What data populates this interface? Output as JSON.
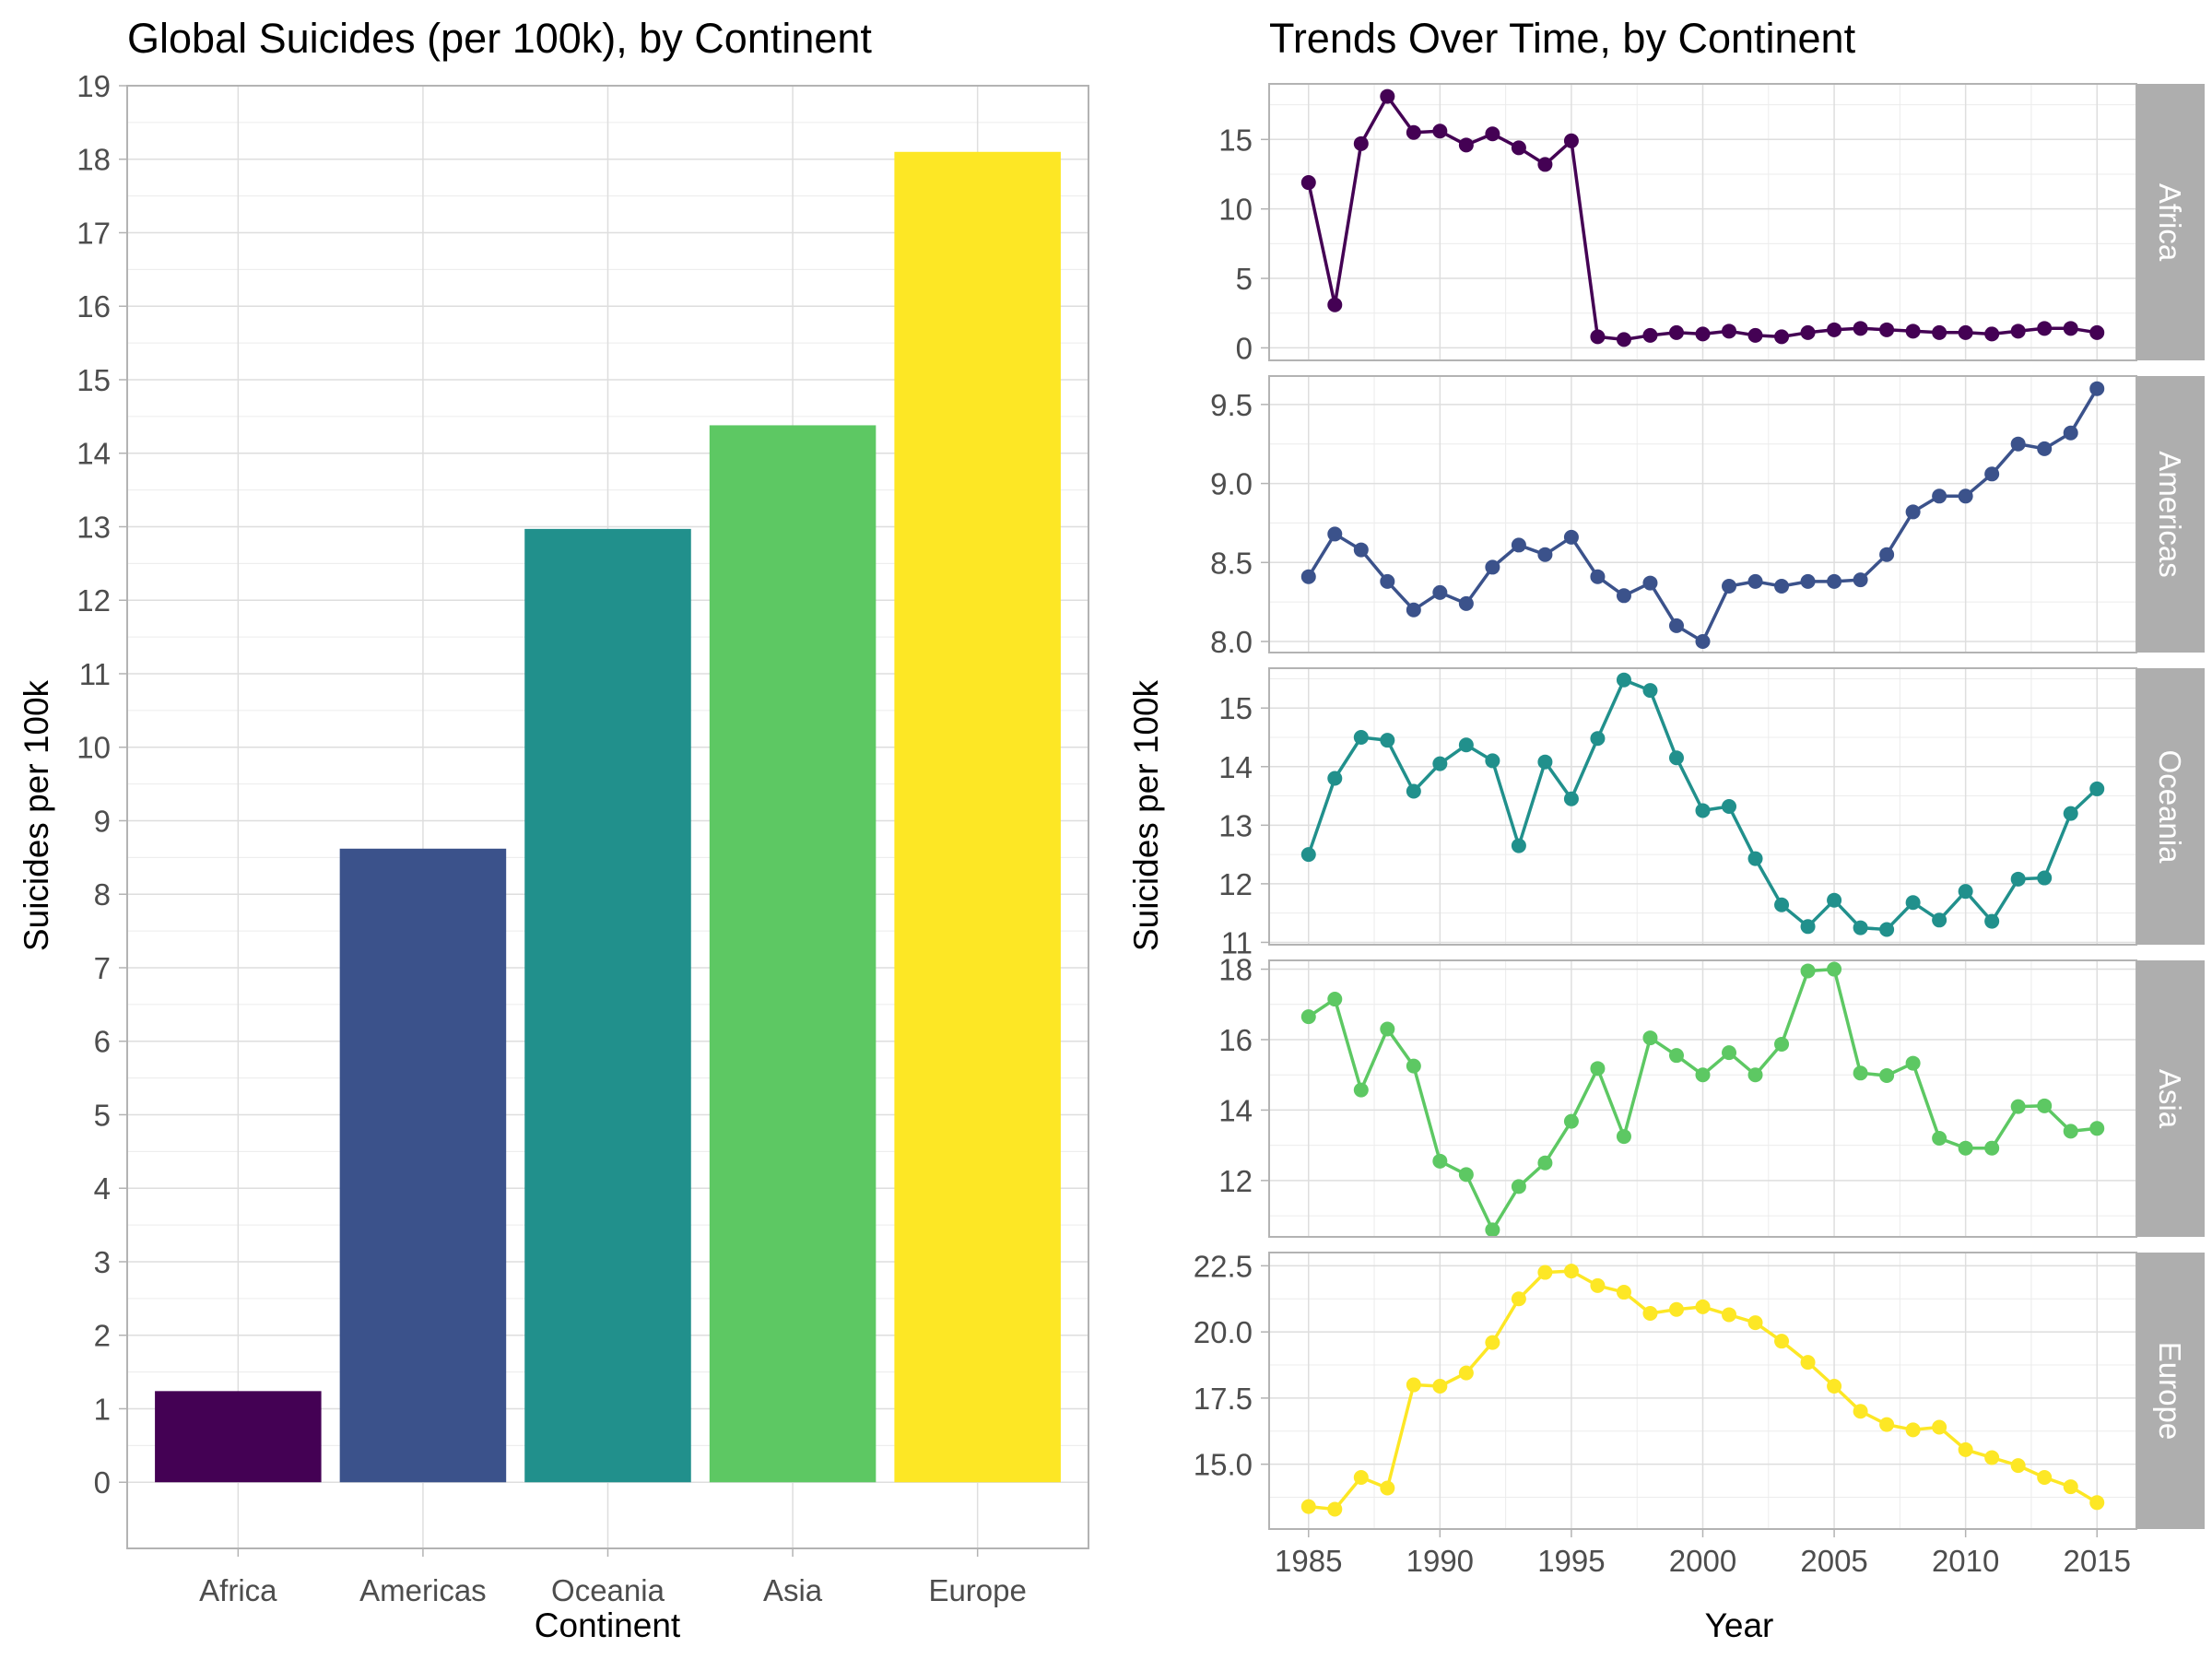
{
  "chart_data": [
    {
      "type": "bar",
      "title": "Global Suicides (per 100k), by Continent",
      "xlabel": "Continent",
      "ylabel": "Suicides per 100k",
      "categories": [
        "Africa",
        "Americas",
        "Oceania",
        "Asia",
        "Europe"
      ],
      "values": [
        1.24,
        8.62,
        12.97,
        14.38,
        18.1
      ],
      "colors": [
        "#440154",
        "#3B528B",
        "#21908C",
        "#5DC863",
        "#FDE725"
      ],
      "ylim": [
        -0.9,
        19
      ],
      "yticks": [
        0,
        1,
        2,
        3,
        4,
        5,
        6,
        7,
        8,
        9,
        10,
        11,
        12,
        13,
        14,
        15,
        16,
        17,
        18,
        19
      ],
      "grid": true,
      "legend": "none"
    },
    {
      "type": "line",
      "title": "Trends Over Time, by Continent",
      "xlabel": "Year",
      "ylabel": "Suicides per 100k",
      "x": [
        1985,
        1986,
        1987,
        1988,
        1989,
        1990,
        1991,
        1992,
        1993,
        1994,
        1995,
        1996,
        1997,
        1998,
        1999,
        2000,
        2001,
        2002,
        2003,
        2004,
        2005,
        2006,
        2007,
        2008,
        2009,
        2010,
        2011,
        2012,
        2013,
        2014,
        2015
      ],
      "xticks": [
        1985,
        1990,
        1995,
        2000,
        2005,
        2010,
        2015
      ],
      "xlim": [
        1983.5,
        2016.5
      ],
      "grid": true,
      "legend": "none",
      "facets": [
        {
          "name": "Africa",
          "color": "#440154",
          "ylim": [
            -0.9,
            19.0
          ],
          "yticks": [
            0,
            5,
            10,
            15
          ],
          "ytick_labels": [
            "0",
            "5",
            "10",
            "15"
          ],
          "values": [
            11.9,
            3.1,
            14.7,
            18.1,
            15.5,
            15.6,
            14.6,
            15.4,
            14.4,
            13.2,
            14.9,
            0.8,
            0.6,
            0.9,
            1.1,
            1.0,
            1.2,
            0.9,
            0.8,
            1.1,
            1.3,
            1.4,
            1.3,
            1.2,
            1.1,
            1.1,
            1.0,
            1.2,
            1.4,
            1.4,
            1.1
          ]
        },
        {
          "name": "Americas",
          "color": "#3B528B",
          "ylim": [
            7.93,
            9.68
          ],
          "yticks": [
            8.0,
            8.5,
            9.0,
            9.5
          ],
          "ytick_labels": [
            "8.0",
            "8.5",
            "9.0",
            "9.5"
          ],
          "values": [
            8.41,
            8.68,
            8.58,
            8.38,
            8.2,
            8.31,
            8.24,
            8.47,
            8.61,
            8.55,
            8.66,
            8.41,
            8.29,
            8.37,
            8.1,
            8.0,
            8.35,
            8.38,
            8.35,
            8.38,
            8.38,
            8.39,
            8.55,
            8.82,
            8.92,
            8.92,
            9.06,
            9.25,
            9.22,
            9.32,
            9.6
          ]
        },
        {
          "name": "Oceania",
          "color": "#21908C",
          "ylim": [
            10.96,
            15.68
          ],
          "yticks": [
            11,
            12,
            13,
            14,
            15
          ],
          "ytick_labels": [
            "11",
            "12",
            "13",
            "14",
            "15"
          ],
          "values": [
            12.5,
            13.8,
            14.5,
            14.45,
            13.58,
            14.05,
            14.37,
            14.1,
            12.65,
            14.08,
            13.45,
            14.48,
            15.48,
            15.3,
            14.15,
            13.25,
            13.32,
            12.43,
            11.64,
            11.27,
            11.72,
            11.25,
            11.22,
            11.68,
            11.38,
            11.87,
            11.36,
            12.08,
            12.1,
            13.2,
            13.62
          ]
        },
        {
          "name": "Asia",
          "color": "#5DC863",
          "ylim": [
            10.4,
            18.25
          ],
          "yticks": [
            12,
            14,
            16,
            18
          ],
          "ytick_labels": [
            "12",
            "14",
            "16",
            "18"
          ],
          "values": [
            16.65,
            17.15,
            14.57,
            16.3,
            15.25,
            12.55,
            12.17,
            10.6,
            11.83,
            12.5,
            13.68,
            15.18,
            13.25,
            16.05,
            15.55,
            15.0,
            15.63,
            15.0,
            15.87,
            17.95,
            18.0,
            15.05,
            14.98,
            15.33,
            13.2,
            12.92,
            12.92,
            14.1,
            14.12,
            13.4,
            13.48
          ]
        },
        {
          "name": "Europe",
          "color": "#FDE725",
          "ylim": [
            12.55,
            23.0
          ],
          "yticks": [
            15.0,
            17.5,
            20.0,
            22.5
          ],
          "ytick_labels": [
            "15.0",
            "17.5",
            "20.0",
            "22.5"
          ],
          "values": [
            13.4,
            13.3,
            14.5,
            14.1,
            18.0,
            17.95,
            18.45,
            19.6,
            21.25,
            22.25,
            22.3,
            21.75,
            21.5,
            20.7,
            20.85,
            20.95,
            20.65,
            20.35,
            19.65,
            18.85,
            17.95,
            17.0,
            16.5,
            16.3,
            16.4,
            15.55,
            15.25,
            14.95,
            14.5,
            14.15,
            13.55
          ]
        }
      ]
    }
  ]
}
